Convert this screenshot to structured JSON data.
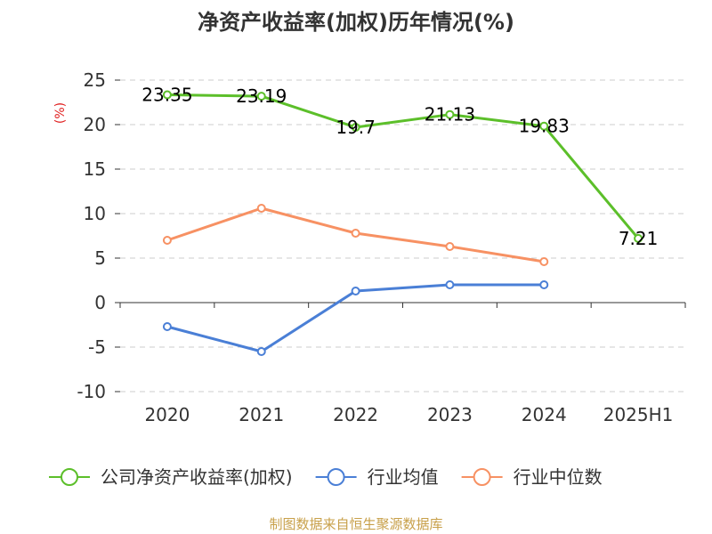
{
  "chart_data": {
    "type": "line",
    "title": "净资产收益率(加权)历年情况(%)",
    "ylabel": "(%)",
    "xlabel": "",
    "categories": [
      "2020",
      "2021",
      "2022",
      "2023",
      "2024",
      "2025H1"
    ],
    "ylim": [
      -10,
      25
    ],
    "yticks": [
      25,
      20,
      15,
      10,
      5,
      0,
      -5,
      -10
    ],
    "grid": true,
    "legend_position": "bottom",
    "series": [
      {
        "name": "公司净资产收益率(加权)",
        "color": "#5cbf2a",
        "values": [
          23.35,
          23.19,
          19.7,
          21.13,
          19.83,
          7.21
        ],
        "labels": [
          "23.35",
          "23.19",
          "19.7",
          "21.13",
          "19.83",
          "7.21"
        ]
      },
      {
        "name": "行业均值",
        "color": "#4a7fd6",
        "values": [
          -2.7,
          -5.5,
          1.3,
          2.0,
          2.0,
          null
        ]
      },
      {
        "name": "行业中位数",
        "color": "#f79163",
        "values": [
          7.0,
          10.6,
          7.8,
          6.3,
          4.6,
          null
        ]
      }
    ],
    "source": "制图数据来自恒生聚源数据库"
  }
}
